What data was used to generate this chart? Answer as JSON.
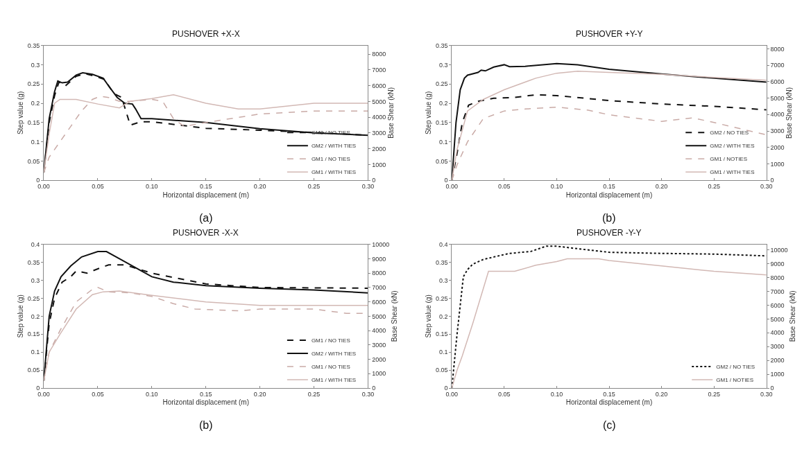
{
  "chart_data": [
    {
      "type": "line",
      "title": "PUSHOVER +X-X",
      "xlabel": "Horizontal displacement (m)",
      "ylabel": "Step value (g)",
      "y2label": "Base Shear (kN)",
      "annotations": [
        "(a)"
      ],
      "xlim": [
        0,
        0.3
      ],
      "xticks": [
        {
          "value": 0,
          "label": "0.00"
        },
        {
          "value": 0.05,
          "label": "0.05"
        },
        {
          "value": 0.1,
          "label": "0.10"
        },
        {
          "value": 0.15,
          "label": "0.15"
        },
        {
          "value": 0.2,
          "label": "0.20"
        },
        {
          "value": 0.25,
          "label": "0.25"
        },
        {
          "value": 0.3,
          "label": "0.30"
        }
      ],
      "ylim": [
        0,
        0.35
      ],
      "yticks": [
        0,
        0.05,
        0.1,
        0.15,
        0.2,
        0.25,
        0.3,
        0.35
      ],
      "y2lim": [
        0,
        8550
      ],
      "y2ticks": [
        0,
        1000,
        2000,
        3000,
        4000,
        5000,
        6000,
        7000,
        8000
      ],
      "legend": "bottom right",
      "series": [
        {
          "name": "GM2 / NO TIES",
          "color": "#111111",
          "line_style": "dashed",
          "x": [
            0,
            0.005,
            0.01,
            0.014,
            0.02,
            0.03,
            0.038,
            0.05,
            0.056,
            0.065,
            0.072,
            0.076,
            0.08,
            0.09,
            0.1,
            0.15,
            0.2,
            0.25,
            0.3
          ],
          "values": [
            0.02,
            0.15,
            0.22,
            0.255,
            0.245,
            0.27,
            0.277,
            0.268,
            0.262,
            0.225,
            0.215,
            0.18,
            0.143,
            0.152,
            0.152,
            0.135,
            0.13,
            0.124,
            0.117
          ]
        },
        {
          "name": "GM2 / WITH TIES",
          "color": "#111111",
          "line_style": "solid",
          "x": [
            0,
            0.005,
            0.01,
            0.013,
            0.017,
            0.022,
            0.03,
            0.036,
            0.045,
            0.055,
            0.06,
            0.068,
            0.075,
            0.082,
            0.085,
            0.09,
            0.1,
            0.15,
            0.2,
            0.25,
            0.3
          ],
          "values": [
            0.02,
            0.16,
            0.23,
            0.258,
            0.253,
            0.255,
            0.273,
            0.279,
            0.275,
            0.265,
            0.245,
            0.215,
            0.2,
            0.198,
            0.185,
            0.16,
            0.16,
            0.15,
            0.134,
            0.123,
            0.117
          ]
        },
        {
          "name": "GM1 / NO TIES",
          "color": "#c9aaa6",
          "line_style": "dashed",
          "x": [
            0,
            0.005,
            0.015,
            0.025,
            0.035,
            0.045,
            0.052,
            0.06,
            0.07,
            0.08,
            0.1,
            0.11,
            0.12,
            0.13,
            0.15,
            0.2,
            0.25,
            0.3
          ],
          "values": [
            0.02,
            0.06,
            0.1,
            0.14,
            0.18,
            0.21,
            0.218,
            0.215,
            0.205,
            0.205,
            0.21,
            0.205,
            0.16,
            0.14,
            0.15,
            0.172,
            0.18,
            0.18
          ]
        },
        {
          "name": "GM1 / WITH TIES",
          "color": "#d2b8b4",
          "line_style": "solid",
          "x": [
            0,
            0.005,
            0.01,
            0.015,
            0.03,
            0.05,
            0.07,
            0.08,
            0.1,
            0.12,
            0.15,
            0.18,
            0.2,
            0.25,
            0.3
          ],
          "values": [
            0.02,
            0.12,
            0.2,
            0.21,
            0.21,
            0.198,
            0.188,
            0.205,
            0.212,
            0.222,
            0.2,
            0.185,
            0.185,
            0.2,
            0.2
          ]
        }
      ]
    },
    {
      "type": "line",
      "title": "PUSHOVER +Y-Y",
      "xlabel": "Horizontal displacement (m)",
      "ylabel": "Step value (g)",
      "y2label": "Base Shear (kN)",
      "annotations": [
        "(b)"
      ],
      "xlim": [
        0,
        0.3
      ],
      "xticks": [
        {
          "value": 0,
          "label": "0.00"
        },
        {
          "value": 0.05,
          "label": "0.05"
        },
        {
          "value": 0.1,
          "label": "0.10"
        },
        {
          "value": 0.15,
          "label": "0.15"
        },
        {
          "value": 0.2,
          "label": "0.20"
        },
        {
          "value": 0.25,
          "label": "0.25"
        },
        {
          "value": 0.3,
          "label": "0.30"
        }
      ],
      "ylim": [
        0,
        0.35
      ],
      "yticks": [
        0,
        0.05,
        0.1,
        0.15,
        0.2,
        0.25,
        0.3,
        0.35
      ],
      "y2lim": [
        0,
        8200
      ],
      "y2ticks": [
        0,
        1000,
        2000,
        3000,
        4000,
        5000,
        6000,
        7000,
        8000
      ],
      "legend": "bottom right",
      "series": [
        {
          "name": "GM2 / NO TIES",
          "color": "#111111",
          "line_style": "dashed",
          "x": [
            0,
            0.005,
            0.01,
            0.016,
            0.025,
            0.04,
            0.06,
            0.08,
            0.1,
            0.15,
            0.2,
            0.25,
            0.3
          ],
          "values": [
            0,
            0.07,
            0.15,
            0.195,
            0.205,
            0.213,
            0.215,
            0.222,
            0.22,
            0.207,
            0.198,
            0.192,
            0.183
          ]
        },
        {
          "name": "GM2 / WITH TIES",
          "color": "#111111",
          "line_style": "solid",
          "x": [
            0,
            0.004,
            0.008,
            0.012,
            0.015,
            0.025,
            0.028,
            0.032,
            0.04,
            0.05,
            0.055,
            0.07,
            0.1,
            0.12,
            0.15,
            0.2,
            0.25,
            0.3
          ],
          "values": [
            0,
            0.15,
            0.235,
            0.265,
            0.273,
            0.28,
            0.286,
            0.284,
            0.294,
            0.3,
            0.295,
            0.296,
            0.303,
            0.3,
            0.288,
            0.276,
            0.265,
            0.255
          ]
        },
        {
          "name": "GM1 / NOTIES",
          "color": "#c9aaa6",
          "line_style": "dashed",
          "x": [
            0,
            0.005,
            0.015,
            0.03,
            0.05,
            0.07,
            0.1,
            0.13,
            0.15,
            0.2,
            0.23,
            0.25,
            0.3
          ],
          "values": [
            0,
            0.04,
            0.1,
            0.16,
            0.18,
            0.185,
            0.19,
            0.182,
            0.17,
            0.153,
            0.162,
            0.15,
            0.118
          ]
        },
        {
          "name": "GM1 / WITH TIES",
          "color": "#d2b8b4",
          "line_style": "solid",
          "x": [
            0,
            0.005,
            0.015,
            0.03,
            0.05,
            0.08,
            0.1,
            0.12,
            0.15,
            0.2,
            0.25,
            0.3
          ],
          "values": [
            0,
            0.08,
            0.18,
            0.21,
            0.235,
            0.265,
            0.278,
            0.283,
            0.28,
            0.275,
            0.267,
            0.26
          ]
        }
      ]
    },
    {
      "type": "line",
      "title": "PUSHOVER -X-X",
      "xlabel": "Horizontal displacement (m)",
      "ylabel": "Step value (g)",
      "y2label": "Base Shear (kN)",
      "annotations": [
        "(b)"
      ],
      "xlim": [
        0,
        0.3
      ],
      "xticks": [
        {
          "value": 0,
          "label": "0.00"
        },
        {
          "value": 0.05,
          "label": "0.05"
        },
        {
          "value": 0.1,
          "label": "0.10"
        },
        {
          "value": 0.15,
          "label": "0.15"
        },
        {
          "value": 0.2,
          "label": "0.20"
        },
        {
          "value": 0.25,
          "label": "0.25"
        },
        {
          "value": 0.3,
          "label": "0.30"
        }
      ],
      "ylim": [
        0,
        0.4
      ],
      "yticks": [
        0,
        0.05,
        0.1,
        0.15,
        0.2,
        0.25,
        0.3,
        0.35,
        0.4
      ],
      "y2lim": [
        0,
        10000
      ],
      "y2ticks": [
        0,
        1000,
        2000,
        3000,
        4000,
        5000,
        6000,
        7000,
        8000,
        9000,
        10000
      ],
      "legend": "bottom right",
      "series": [
        {
          "name": "GM1 / NO TIES",
          "color": "#111111",
          "line_style": "dashed",
          "x": [
            0,
            0.005,
            0.01,
            0.017,
            0.025,
            0.03,
            0.04,
            0.05,
            0.06,
            0.075,
            0.1,
            0.15,
            0.2,
            0.3
          ],
          "values": [
            0.02,
            0.18,
            0.25,
            0.295,
            0.31,
            0.326,
            0.32,
            0.332,
            0.343,
            0.343,
            0.32,
            0.29,
            0.28,
            0.278
          ]
        },
        {
          "name": "GM2 / WITH TIES",
          "color": "#111111",
          "line_style": "solid",
          "x": [
            0,
            0.005,
            0.01,
            0.016,
            0.025,
            0.035,
            0.05,
            0.058,
            0.07,
            0.085,
            0.1,
            0.12,
            0.15,
            0.2,
            0.25,
            0.3
          ],
          "values": [
            0.02,
            0.2,
            0.27,
            0.31,
            0.34,
            0.365,
            0.38,
            0.38,
            0.36,
            0.335,
            0.31,
            0.295,
            0.285,
            0.278,
            0.273,
            0.265
          ]
        },
        {
          "name": "GM1 / NO TIES",
          "color": "#c9aaa6",
          "line_style": "dashed",
          "x": [
            0,
            0.005,
            0.015,
            0.03,
            0.045,
            0.05,
            0.06,
            0.08,
            0.1,
            0.12,
            0.14,
            0.18,
            0.2,
            0.25,
            0.28,
            0.3
          ],
          "values": [
            0.02,
            0.1,
            0.16,
            0.24,
            0.275,
            0.28,
            0.268,
            0.265,
            0.255,
            0.235,
            0.22,
            0.215,
            0.22,
            0.22,
            0.208,
            0.208
          ]
        },
        {
          "name": "GM1 / WITH TIES",
          "color": "#d2b8b4",
          "line_style": "solid",
          "x": [
            0,
            0.005,
            0.015,
            0.03,
            0.045,
            0.055,
            0.07,
            0.1,
            0.15,
            0.2,
            0.3
          ],
          "values": [
            0.02,
            0.1,
            0.15,
            0.22,
            0.26,
            0.268,
            0.27,
            0.258,
            0.24,
            0.23,
            0.23
          ]
        }
      ]
    },
    {
      "type": "line",
      "title": "PUSHOVER -Y-Y",
      "xlabel": "Horizontal displacement (m)",
      "ylabel": "Step value (g)",
      "y2label": "Base Shear (kN)",
      "annotations": [
        "(c)"
      ],
      "xlim": [
        0,
        0.3
      ],
      "xticks": [
        {
          "value": 0,
          "label": "0.00"
        },
        {
          "value": 0.05,
          "label": "0.05"
        },
        {
          "value": 0.1,
          "label": "0.10"
        },
        {
          "value": 0.15,
          "label": "0.15"
        },
        {
          "value": 0.2,
          "label": "0.20"
        },
        {
          "value": 0.25,
          "label": "0.25"
        },
        {
          "value": 0.3,
          "label": "0.30"
        }
      ],
      "ylim": [
        0,
        0.4
      ],
      "yticks": [
        0,
        0.05,
        0.1,
        0.15,
        0.2,
        0.25,
        0.3,
        0.35,
        0.4
      ],
      "y2lim": [
        0,
        10400
      ],
      "y2ticks": [
        0,
        1000,
        2000,
        3000,
        4000,
        5000,
        6000,
        7000,
        8000,
        9000,
        10000
      ],
      "legend": "bottom right",
      "series": [
        {
          "name": "GM2 / NO TIES",
          "color": "#111111",
          "line_style": "dotted",
          "x": [
            0,
            0.005,
            0.011,
            0.015,
            0.02,
            0.03,
            0.04,
            0.055,
            0.075,
            0.09,
            0.1,
            0.12,
            0.15,
            0.2,
            0.25,
            0.3
          ],
          "values": [
            0,
            0.15,
            0.31,
            0.33,
            0.345,
            0.358,
            0.365,
            0.375,
            0.38,
            0.395,
            0.395,
            0.388,
            0.378,
            0.375,
            0.373,
            0.368
          ]
        },
        {
          "name": "GM1 / NOTIES",
          "color": "#d2b8b4",
          "line_style": "solid",
          "x": [
            0,
            0.005,
            0.01,
            0.02,
            0.035,
            0.05,
            0.06,
            0.08,
            0.1,
            0.11,
            0.14,
            0.15,
            0.2,
            0.25,
            0.3
          ],
          "values": [
            0,
            0.05,
            0.09,
            0.18,
            0.325,
            0.325,
            0.325,
            0.342,
            0.352,
            0.36,
            0.36,
            0.355,
            0.34,
            0.325,
            0.315
          ]
        }
      ]
    }
  ]
}
